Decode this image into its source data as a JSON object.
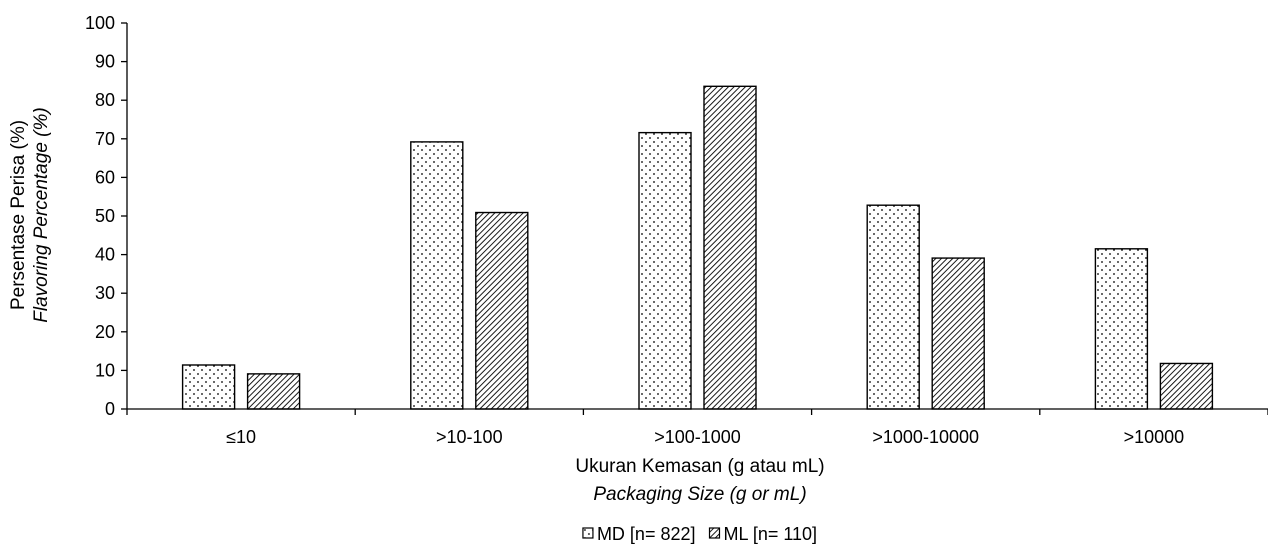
{
  "chart_data": {
    "type": "bar",
    "categories": [
      "≤10",
      ">10-100",
      ">100-1000",
      ">1000-10000",
      ">10000"
    ],
    "series": [
      {
        "name": "MD [n= 822]",
        "pattern": "dots",
        "values": [
          11.4,
          69.2,
          71.6,
          52.8,
          41.5
        ]
      },
      {
        "name": "ML [n= 110]",
        "pattern": "diagonal-hatch",
        "values": [
          9.1,
          50.9,
          83.6,
          39.1,
          11.8
        ]
      }
    ],
    "ylabel": "Persentase Perisa (%)",
    "ylabel_secondary": "Flavoring Percentage (%)",
    "xlabel": "Ukuran Kemasan (g atau mL)",
    "xlabel_secondary": "Packaging Size (g or mL)",
    "ylim": [
      0,
      100
    ],
    "yticks": [
      0,
      10,
      20,
      30,
      40,
      50,
      60,
      70,
      80,
      90,
      100
    ],
    "grid": false,
    "legend_position": "bottom-center",
    "colors": {
      "bar_fill": "#ffffff",
      "bar_stroke": "#000000",
      "pattern_ink": "#000000",
      "text": "#000000"
    }
  }
}
